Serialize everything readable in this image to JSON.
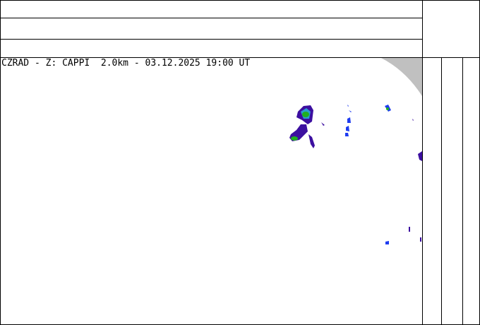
{
  "map": {
    "title": "CZRAD - Z: CAPPI  2.0km - 03.12.2025 19:00 UT"
  },
  "colors": {
    "background": "#ffffff",
    "outside_range": "#c0c0c0",
    "echo_weak": "#3c0fa0",
    "echo_mid": "#1e3cf0",
    "echo_moderate": "#2a9cd0",
    "echo_strong": "#20b020",
    "frame": "#000000"
  }
}
